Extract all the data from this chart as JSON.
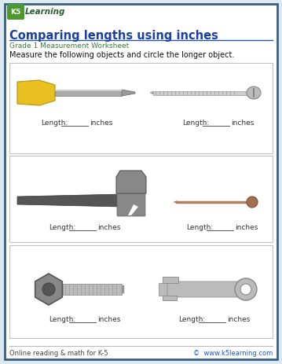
{
  "title": "Comparing lengths using inches",
  "subtitle": "Grade 1 Measurement Worksheet",
  "instruction": "Measure the following objects and circle the longer object.",
  "footer_left": "Online reading & math for K-5",
  "footer_right": "©  www.k5learning.com",
  "bg_color": "#dce8f0",
  "panel_color": "#ffffff",
  "title_color": "#1a3fa0",
  "subtitle_color": "#3a7d3a",
  "footer_link_color": "#1a55cc",
  "footer_text_color": "#444444",
  "instruction_color": "#111111",
  "border_color": "#c0c0c0",
  "line_color": "#2255bb",
  "length_label": "Length:",
  "inches_label": "inches"
}
